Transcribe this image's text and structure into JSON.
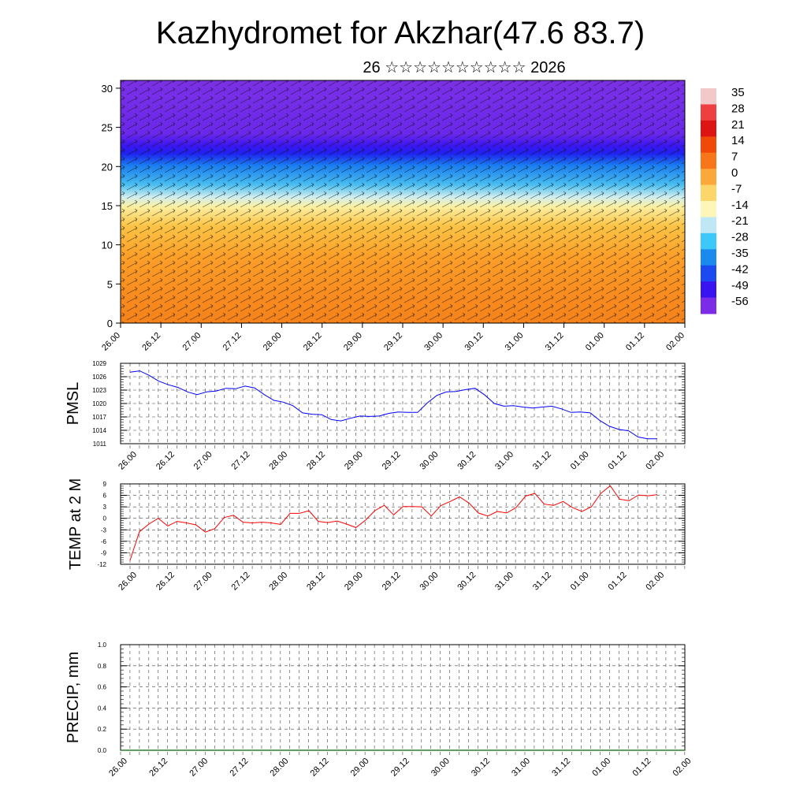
{
  "title": "Kazhydromet for Akzhar(47.6 83.7)",
  "subtitle": "26 ☆☆☆☆☆☆☆☆☆☆ 2026",
  "chart_data": [
    {
      "type": "heatmap",
      "name": "vertical cross-section",
      "xlabel": "",
      "ylabel": "",
      "ylim": [
        0,
        31
      ],
      "y_ticks": [
        0,
        5,
        10,
        15,
        20,
        25,
        30
      ],
      "x_tick_labels": [
        "26.00",
        "26.12",
        "27.00",
        "27.12",
        "28.00",
        "28.12",
        "29.00",
        "29.12",
        "30.00",
        "30.12",
        "31.00",
        "31.12",
        "01.00",
        "01.12",
        "02.00"
      ],
      "colorbar_labels": [
        "35",
        "28",
        "21",
        "14",
        "7",
        "0",
        "-7",
        "-14",
        "-21",
        "-28",
        "-35",
        "-42",
        "-49",
        "-56"
      ],
      "colorbar_colors": [
        "#f3c8c8",
        "#ee4040",
        "#dc1414",
        "#f04a0a",
        "#f8761a",
        "#fca83a",
        "#fcd66a",
        "#fdf6b8",
        "#bfe8f4",
        "#3cc8f8",
        "#1a8aee",
        "#1a4af0",
        "#3a14ee",
        "#7c2ce6"
      ]
    },
    {
      "type": "line",
      "name": "PMSL",
      "ylabel": "PMSL",
      "ylim": [
        1011,
        1029
      ],
      "y_ticks": [
        1011,
        1014,
        1017,
        1020,
        1023,
        1026,
        1029
      ],
      "x_tick_labels": [
        "26.00",
        "26.12",
        "27.00",
        "27.12",
        "28.00",
        "28.12",
        "29.00",
        "29.12",
        "30.00",
        "30.12",
        "31.00",
        "31.12",
        "01.00",
        "01.12",
        "02.00"
      ],
      "series": [
        {
          "name": "PMSL",
          "color": "#0000ff",
          "values": [
            1027.0,
            1027.3,
            1026.3,
            1025.0,
            1024.2,
            1023.6,
            1022.6,
            1022.0,
            1022.6,
            1022.8,
            1023.4,
            1023.3,
            1023.9,
            1023.5,
            1022.0,
            1020.7,
            1020.3,
            1019.5,
            1017.9,
            1017.6,
            1017.5,
            1016.4,
            1016.1,
            1016.7,
            1017.2,
            1017.1,
            1017.2,
            1017.8,
            1018.1,
            1018.0,
            1018.0,
            1020.1,
            1021.8,
            1022.6,
            1022.7,
            1023.1,
            1023.4,
            1021.9,
            1020.0,
            1019.4,
            1019.5,
            1019.2,
            1019.0,
            1019.2,
            1019.4,
            1018.8,
            1018.0,
            1018.1,
            1017.9,
            1016.2,
            1014.9,
            1014.2,
            1013.9,
            1012.5,
            1012.1,
            1012.1
          ]
        }
      ]
    },
    {
      "type": "line",
      "name": "TEMP at 2 M",
      "ylabel": "TEMP at 2 M",
      "ylim": [
        -12,
        9
      ],
      "y_ticks": [
        -12,
        -9,
        -6,
        -3,
        0,
        3,
        6,
        9
      ],
      "x_tick_labels": [
        "26.00",
        "26.12",
        "27.00",
        "27.12",
        "28.00",
        "28.12",
        "29.00",
        "29.12",
        "30.00",
        "30.12",
        "31.00",
        "31.12",
        "01.00",
        "01.12",
        "02.00"
      ],
      "series": [
        {
          "name": "TEMP at 2 M",
          "color": "#ff0000",
          "values": [
            -11.0,
            -3.5,
            -1.5,
            0.0,
            -2.0,
            -0.8,
            -1.2,
            -1.7,
            -3.6,
            -2.7,
            0.2,
            0.8,
            -1.0,
            -1.2,
            -1.0,
            -1.2,
            -1.6,
            1.3,
            1.3,
            2.0,
            -0.8,
            -1.1,
            -0.7,
            -1.5,
            -2.4,
            -0.5,
            2.0,
            3.4,
            0.9,
            3.1,
            3.1,
            3.0,
            0.6,
            3.3,
            4.4,
            5.6,
            4.0,
            1.4,
            0.6,
            1.8,
            1.4,
            2.8,
            5.8,
            6.5,
            3.7,
            3.4,
            4.4,
            2.8,
            1.8,
            3.0,
            6.5,
            8.5,
            5.0,
            4.6,
            6.1,
            5.9,
            6.2
          ]
        }
      ]
    },
    {
      "type": "line",
      "name": "PRECIP, mm",
      "ylabel": "PRECIP, mm",
      "ylim": [
        0,
        1
      ],
      "y_ticks": [
        "0.0",
        "0.2",
        "0.4",
        "0.6",
        "0.8",
        "1.0"
      ],
      "x_tick_labels": [
        "26.00",
        "26.12",
        "27.00",
        "27.12",
        "28.00",
        "28.12",
        "29.00",
        "29.12",
        "30.00",
        "30.12",
        "31.00",
        "31.12",
        "01.00",
        "01.12",
        "02.00"
      ],
      "series": [
        {
          "name": "PRECIP, mm",
          "color": "#006600",
          "values": [
            0,
            0,
            0,
            0,
            0,
            0,
            0,
            0,
            0,
            0,
            0,
            0,
            0,
            0,
            0
          ]
        }
      ]
    }
  ]
}
